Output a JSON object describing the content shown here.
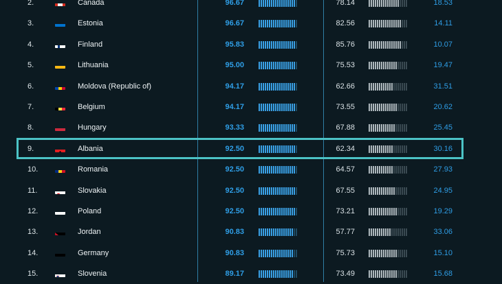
{
  "colors": {
    "background": "#0c1a21",
    "score_blue": "#2f9ee6",
    "highlight": "#4cc3c6"
  },
  "rows": [
    {
      "rank": "2.",
      "country": "Canada",
      "score1": "96.67",
      "score1_pct": 0.97,
      "score2": "78.14",
      "score2_pct": 0.78,
      "score3": "18.53",
      "flag": "canada-flag-icon"
    },
    {
      "rank": "3.",
      "country": "Estonia",
      "score1": "96.67",
      "score1_pct": 0.97,
      "score2": "82.56",
      "score2_pct": 0.83,
      "score3": "14.11",
      "flag": "estonia-flag-icon"
    },
    {
      "rank": "4.",
      "country": "Finland",
      "score1": "95.83",
      "score1_pct": 0.96,
      "score2": "85.76",
      "score2_pct": 0.86,
      "score3": "10.07",
      "flag": "finland-flag-icon"
    },
    {
      "rank": "5.",
      "country": "Lithuania",
      "score1": "95.00",
      "score1_pct": 0.95,
      "score2": "75.53",
      "score2_pct": 0.76,
      "score3": "19.47",
      "flag": "lithuania-flag-icon"
    },
    {
      "rank": "6.",
      "country": "Moldova (Republic of)",
      "score1": "94.17",
      "score1_pct": 0.94,
      "score2": "62.66",
      "score2_pct": 0.63,
      "score3": "31.51",
      "flag": "moldova-flag-icon"
    },
    {
      "rank": "7.",
      "country": "Belgium",
      "score1": "94.17",
      "score1_pct": 0.94,
      "score2": "73.55",
      "score2_pct": 0.74,
      "score3": "20.62",
      "flag": "belgium-flag-icon"
    },
    {
      "rank": "8.",
      "country": "Hungary",
      "score1": "93.33",
      "score1_pct": 0.93,
      "score2": "67.88",
      "score2_pct": 0.68,
      "score3": "25.45",
      "flag": "hungary-flag-icon"
    },
    {
      "rank": "9.",
      "country": "Albania",
      "score1": "92.50",
      "score1_pct": 0.93,
      "score2": "62.34",
      "score2_pct": 0.62,
      "score3": "30.16",
      "flag": "albania-flag-icon",
      "highlighted": true
    },
    {
      "rank": "10.",
      "country": "Romania",
      "score1": "92.50",
      "score1_pct": 0.93,
      "score2": "64.57",
      "score2_pct": 0.65,
      "score3": "27.93",
      "flag": "romania-flag-icon"
    },
    {
      "rank": "11.",
      "country": "Slovakia",
      "score1": "92.50",
      "score1_pct": 0.93,
      "score2": "67.55",
      "score2_pct": 0.68,
      "score3": "24.95",
      "flag": "slovakia-flag-icon"
    },
    {
      "rank": "12.",
      "country": "Poland",
      "score1": "92.50",
      "score1_pct": 0.93,
      "score2": "73.21",
      "score2_pct": 0.73,
      "score3": "19.29",
      "flag": "poland-flag-icon"
    },
    {
      "rank": "13.",
      "country": "Jordan",
      "score1": "90.83",
      "score1_pct": 0.91,
      "score2": "57.77",
      "score2_pct": 0.58,
      "score3": "33.06",
      "flag": "jordan-flag-icon"
    },
    {
      "rank": "14.",
      "country": "Germany",
      "score1": "90.83",
      "score1_pct": 0.91,
      "score2": "75.73",
      "score2_pct": 0.76,
      "score3": "15.10",
      "flag": "germany-flag-icon"
    },
    {
      "rank": "15.",
      "country": "Slovenia",
      "score1": "89.17",
      "score1_pct": 0.89,
      "score2": "73.49",
      "score2_pct": 0.73,
      "score3": "15.68",
      "flag": "slovenia-flag-icon"
    }
  ]
}
